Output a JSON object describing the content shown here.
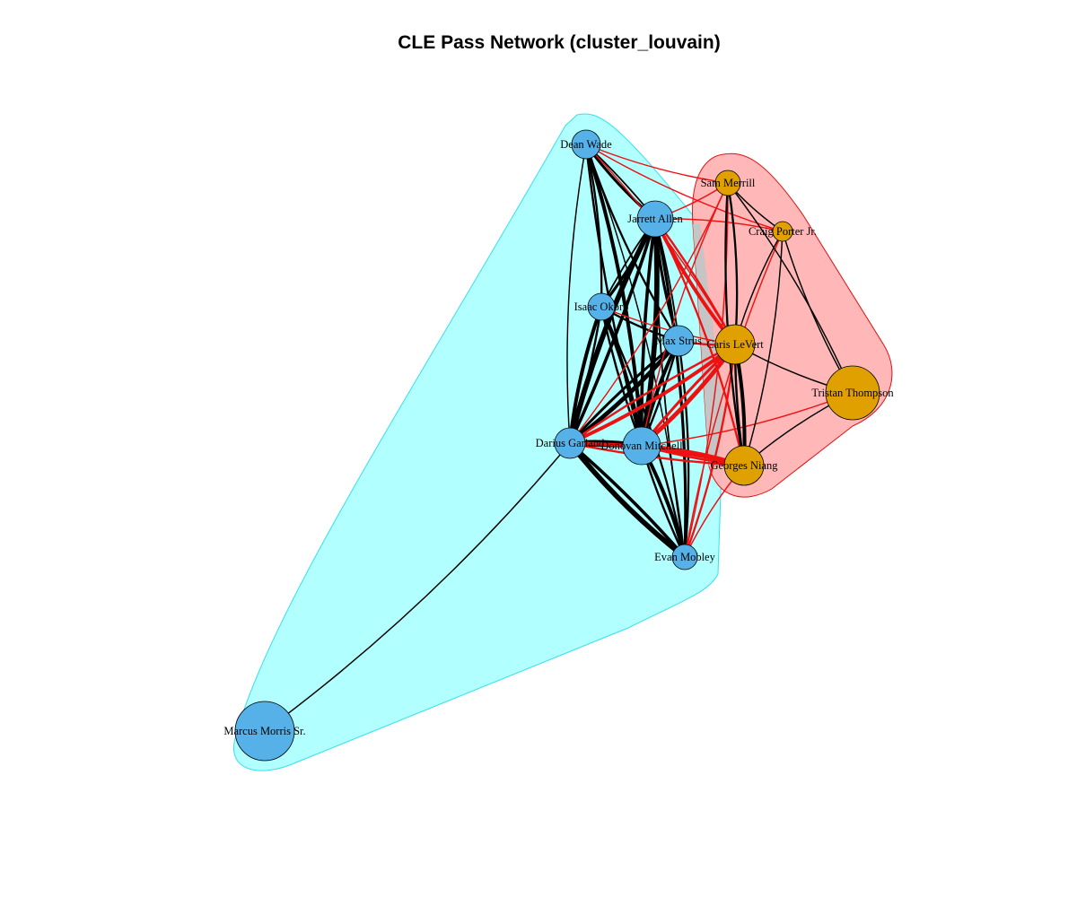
{
  "title": "CLE Pass Network (cluster_louvain)",
  "colors": {
    "community_1_node": "#56B1E8",
    "community_2_node": "#E0A000",
    "community_1_hull_fill": "#B2FFFF",
    "community_1_hull_stroke": "#35E0EC",
    "community_2_hull_fill": "#FFB3B3",
    "community_2_hull_stroke": "#E01010",
    "intra_edge": "#000000",
    "inter_edge": "#EE1111",
    "overlap": "#C5C5C5"
  },
  "nodes": [
    {
      "id": "dean",
      "label": "Dean Wade",
      "community": 1
    },
    {
      "id": "jarrett",
      "label": "Jarrett Allen",
      "community": 1
    },
    {
      "id": "isaac",
      "label": "Isaac Okoro",
      "community": 1
    },
    {
      "id": "max",
      "label": "Max Strus",
      "community": 1
    },
    {
      "id": "darius",
      "label": "Darius Garland",
      "community": 1
    },
    {
      "id": "donovan",
      "label": "Donovan Mitchell",
      "community": 1
    },
    {
      "id": "evan",
      "label": "Evan Mobley",
      "community": 1
    },
    {
      "id": "marcus",
      "label": "Marcus Morris Sr.",
      "community": 1
    },
    {
      "id": "sam",
      "label": "Sam Merrill",
      "community": 2
    },
    {
      "id": "craig",
      "label": "Craig Porter Jr.",
      "community": 2
    },
    {
      "id": "caris",
      "label": "Caris LeVert",
      "community": 2
    },
    {
      "id": "tristan",
      "label": "Tristan Thompson",
      "community": 2
    },
    {
      "id": "georges",
      "label": "Georges Niang",
      "community": 2
    }
  ],
  "edges": [
    {
      "source": "dean",
      "target": "jarrett",
      "weight": 3
    },
    {
      "source": "dean",
      "target": "isaac",
      "weight": 2
    },
    {
      "source": "dean",
      "target": "darius",
      "weight": 1
    },
    {
      "source": "dean",
      "target": "donovan",
      "weight": 4
    },
    {
      "source": "dean",
      "target": "max",
      "weight": 2
    },
    {
      "source": "dean",
      "target": "evan",
      "weight": 1
    },
    {
      "source": "dean",
      "target": "sam",
      "weight": 1
    },
    {
      "source": "dean",
      "target": "caris",
      "weight": 1
    },
    {
      "source": "dean",
      "target": "craig",
      "weight": 1
    },
    {
      "source": "jarrett",
      "target": "isaac",
      "weight": 3
    },
    {
      "source": "jarrett",
      "target": "darius",
      "weight": 6
    },
    {
      "source": "jarrett",
      "target": "donovan",
      "weight": 6
    },
    {
      "source": "jarrett",
      "target": "max",
      "weight": 3
    },
    {
      "source": "jarrett",
      "target": "evan",
      "weight": 3
    },
    {
      "source": "jarrett",
      "target": "caris",
      "weight": 4
    },
    {
      "source": "jarrett",
      "target": "georges",
      "weight": 2
    },
    {
      "source": "jarrett",
      "target": "sam",
      "weight": 1
    },
    {
      "source": "jarrett",
      "target": "craig",
      "weight": 1
    },
    {
      "source": "isaac",
      "target": "darius",
      "weight": 4
    },
    {
      "source": "isaac",
      "target": "donovan",
      "weight": 4
    },
    {
      "source": "isaac",
      "target": "max",
      "weight": 2
    },
    {
      "source": "isaac",
      "target": "evan",
      "weight": 2
    },
    {
      "source": "isaac",
      "target": "caris",
      "weight": 1
    },
    {
      "source": "max",
      "target": "darius",
      "weight": 5
    },
    {
      "source": "max",
      "target": "donovan",
      "weight": 4
    },
    {
      "source": "max",
      "target": "evan",
      "weight": 2
    },
    {
      "source": "max",
      "target": "caris",
      "weight": 2
    },
    {
      "source": "darius",
      "target": "donovan",
      "weight": 5
    },
    {
      "source": "darius",
      "target": "evan",
      "weight": 6
    },
    {
      "source": "darius",
      "target": "marcus",
      "weight": 1
    },
    {
      "source": "darius",
      "target": "caris",
      "weight": 4
    },
    {
      "source": "darius",
      "target": "georges",
      "weight": 4
    },
    {
      "source": "darius",
      "target": "sam",
      "weight": 1
    },
    {
      "source": "donovan",
      "target": "evan",
      "weight": 4
    },
    {
      "source": "donovan",
      "target": "caris",
      "weight": 5
    },
    {
      "source": "donovan",
      "target": "georges",
      "weight": 4
    },
    {
      "source": "donovan",
      "target": "tristan",
      "weight": 1
    },
    {
      "source": "donovan",
      "target": "sam",
      "weight": 1
    },
    {
      "source": "evan",
      "target": "caris",
      "weight": 2
    },
    {
      "source": "evan",
      "target": "georges",
      "weight": 1
    },
    {
      "source": "evan",
      "target": "sam",
      "weight": 1
    },
    {
      "source": "evan",
      "target": "craig",
      "weight": 1
    },
    {
      "source": "sam",
      "target": "craig",
      "weight": 1
    },
    {
      "source": "sam",
      "target": "caris",
      "weight": 2
    },
    {
      "source": "sam",
      "target": "georges",
      "weight": 2
    },
    {
      "source": "sam",
      "target": "tristan",
      "weight": 1
    },
    {
      "source": "craig",
      "target": "caris",
      "weight": 1
    },
    {
      "source": "craig",
      "target": "georges",
      "weight": 1
    },
    {
      "source": "craig",
      "target": "tristan",
      "weight": 1
    },
    {
      "source": "caris",
      "target": "georges",
      "weight": 4
    },
    {
      "source": "caris",
      "target": "tristan",
      "weight": 1
    },
    {
      "source": "georges",
      "target": "tristan",
      "weight": 1
    }
  ]
}
